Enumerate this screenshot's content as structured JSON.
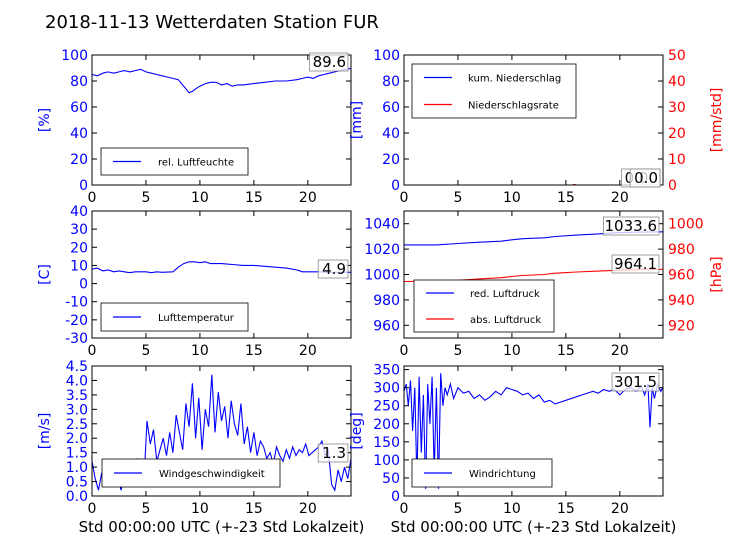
{
  "suptitle": "2018-11-13 Wetterdaten Station FUR\u0005",
  "colors": {
    "primary": "#0000ff",
    "secondary": "#ff0000",
    "frame": "#000000"
  },
  "chart_data": [
    {
      "id": "feuchte",
      "type": "line",
      "ylabel": "[%]",
      "xlim": [
        0,
        24
      ],
      "ylim": [
        0,
        100
      ],
      "xticks": [
        0,
        5,
        10,
        15,
        20
      ],
      "yticks": [
        0,
        20,
        40,
        60,
        80,
        100
      ],
      "grid": false,
      "legend_position": "lower-left",
      "annotation": "89.6",
      "series": [
        {
          "name": "rel. Luftfeuchte",
          "color": "#0000ff",
          "x": [
            0,
            0.5,
            1,
            1.5,
            2,
            2.5,
            3,
            3.5,
            4,
            4.5,
            5,
            5.5,
            6,
            6.5,
            7,
            7.5,
            8,
            8.5,
            8.8,
            9,
            9.3,
            9.6,
            10,
            10.5,
            11,
            11.5,
            12,
            12.5,
            13,
            13.5,
            14,
            15,
            16,
            17,
            18,
            19,
            19.5,
            20,
            20.5,
            21,
            21.5,
            22,
            22.5,
            23,
            23.5,
            24
          ],
          "y": [
            85,
            84,
            86,
            87,
            86,
            87,
            88,
            87,
            88,
            89,
            87,
            86,
            85,
            84,
            83,
            82,
            81,
            76,
            73,
            71,
            72,
            74,
            76,
            78,
            79,
            79,
            77,
            78,
            76,
            77,
            77,
            78,
            79,
            80,
            80,
            81,
            82,
            83,
            82,
            84,
            85,
            86,
            87,
            88,
            89,
            89.6
          ]
        }
      ]
    },
    {
      "id": "niederschlag",
      "type": "line",
      "ylabel": "[mm]",
      "ylabel_right": "[mm/std]",
      "xlim": [
        0,
        24
      ],
      "ylim": [
        0,
        100
      ],
      "ylim_right": [
        0,
        50
      ],
      "xticks": [
        0,
        5,
        10,
        15,
        20
      ],
      "yticks": [
        0,
        20,
        40,
        60,
        80,
        100
      ],
      "yticks_right": [
        0,
        10,
        20,
        30,
        40,
        50
      ],
      "grid": false,
      "legend_position": "upper-left",
      "annotations": [
        "0.00",
        "0.0"
      ],
      "series": [
        {
          "name": "kum. Niederschlag",
          "axis": "left",
          "color": "#0000ff",
          "x": [
            0,
            24
          ],
          "y": [
            0,
            0
          ]
        },
        {
          "name": "Niederschlagsrate",
          "axis": "right",
          "color": "#ff0000",
          "x": [
            0,
            15.6,
            15.8,
            16,
            24
          ],
          "y": [
            0,
            0,
            0.2,
            0,
            0
          ]
        }
      ]
    },
    {
      "id": "temperatur",
      "type": "line",
      "ylabel": "[C]",
      "xlim": [
        0,
        24
      ],
      "ylim": [
        -30,
        40
      ],
      "xticks": [
        0,
        5,
        10,
        15,
        20
      ],
      "yticks": [
        -30,
        -20,
        -10,
        0,
        10,
        20,
        30,
        40
      ],
      "grid": false,
      "legend_position": "lower-left",
      "annotation": "4.9",
      "series": [
        {
          "name": "Lufttemperatur",
          "color": "#0000ff",
          "x": [
            0,
            0.5,
            1,
            1.5,
            2,
            2.5,
            3,
            3.5,
            4,
            4.5,
            5,
            5.5,
            6,
            6.5,
            7,
            7.5,
            8,
            8.5,
            9,
            9.5,
            10,
            10.5,
            11,
            11.5,
            12,
            13,
            14,
            15,
            16,
            17,
            18,
            19,
            19.5,
            20,
            21,
            22,
            23,
            24
          ],
          "y": [
            8,
            8.5,
            7,
            7.5,
            6.5,
            7,
            6.5,
            6,
            6.5,
            6.5,
            6.5,
            6,
            6.5,
            6.2,
            6.3,
            6.5,
            9,
            11,
            12,
            12,
            11.5,
            12,
            11,
            11,
            11,
            10.5,
            10,
            10,
            9.5,
            9,
            8.5,
            7.5,
            6.5,
            6.5,
            6.5,
            6.2,
            6.2,
            6.2
          ]
        }
      ]
    },
    {
      "id": "luftdruck",
      "type": "line",
      "ylabel_right": "[hPa]",
      "xlim": [
        0,
        24
      ],
      "ylim": [
        950,
        1050
      ],
      "ylim_right": [
        910,
        1010
      ],
      "xticks": [
        0,
        5,
        10,
        15,
        20
      ],
      "yticks": [
        960,
        980,
        1000,
        1020,
        1040
      ],
      "yticks_right": [
        920,
        940,
        960,
        980,
        1000
      ],
      "grid": false,
      "legend_position": "lower-left",
      "annotations": [
        "1033.6",
        "964.1"
      ],
      "series": [
        {
          "name": "red. Luftdruck",
          "axis": "left",
          "color": "#0000ff",
          "x": [
            0,
            3,
            5,
            7,
            9,
            10,
            11,
            13,
            14,
            16,
            18,
            20,
            22,
            24
          ],
          "y": [
            1023.3,
            1023.3,
            1024.4,
            1025.4,
            1026.2,
            1027.3,
            1028.2,
            1028.9,
            1029.9,
            1031,
            1032,
            1033,
            1033.4,
            1033.6
          ]
        },
        {
          "name": "abs. Luftdruck",
          "axis": "right",
          "color": "#ff0000",
          "x": [
            0,
            3,
            5,
            7,
            9,
            10,
            11,
            13,
            14,
            16,
            18,
            20,
            22,
            24
          ],
          "y": [
            954.5,
            954.8,
            955.4,
            956.5,
            957.5,
            958.4,
            959.2,
            960,
            961,
            962,
            962.7,
            963.4,
            963.9,
            964.1
          ]
        }
      ]
    },
    {
      "id": "wind",
      "type": "line",
      "ylabel": "[m/s]",
      "xlim": [
        0,
        24
      ],
      "ylim": [
        0,
        4.5
      ],
      "xticks": [
        0,
        5,
        10,
        15,
        20
      ],
      "yticks": [
        0.0,
        0.5,
        1.0,
        1.5,
        2.0,
        2.5,
        3.0,
        3.5,
        4.0,
        4.5
      ],
      "grid": false,
      "legend_position": "lower-center",
      "xlabel": "Std 00:00:00 UTC (+-23 Std Lokalzeit)",
      "annotation": "1.3",
      "series": [
        {
          "name": "Windgeschwindigkeit",
          "color": "#0000ff",
          "x": [
            0,
            0.3,
            0.6,
            0.9,
            1.2,
            1.5,
            1.8,
            2.1,
            2.4,
            2.7,
            3,
            3.3,
            3.6,
            3.9,
            4.2,
            4.5,
            4.8,
            5.1,
            5.4,
            5.7,
            6,
            6.3,
            6.6,
            6.9,
            7.2,
            7.5,
            7.8,
            8.1,
            8.4,
            8.7,
            9,
            9.3,
            9.6,
            9.9,
            10.2,
            10.5,
            10.8,
            11.1,
            11.4,
            11.7,
            12,
            12.3,
            12.6,
            12.9,
            13.2,
            13.5,
            13.8,
            14.1,
            14.4,
            14.7,
            15,
            15.3,
            15.6,
            15.9,
            16.2,
            16.5,
            16.8,
            17.1,
            17.4,
            17.7,
            18,
            18.3,
            18.6,
            18.9,
            19.2,
            19.5,
            19.8,
            20.1,
            20.4,
            20.7,
            21,
            21.3,
            21.6,
            21.9,
            22.2,
            22.5,
            22.8,
            23.1,
            23.4,
            23.7,
            24
          ],
          "y": [
            1.2,
            0.6,
            0.2,
            0.8,
            0.3,
            1.0,
            0.4,
            1.2,
            0.6,
            0.2,
            0.9,
            0.4,
            1.1,
            0.5,
            1.3,
            0.8,
            0.4,
            2.6,
            1.8,
            2.3,
            1.2,
            1.6,
            2.0,
            1.4,
            2.2,
            1.5,
            2.8,
            2.2,
            1.6,
            3.2,
            2.4,
            3.9,
            2.0,
            3.4,
            1.6,
            3.0,
            2.4,
            4.2,
            2.2,
            3.6,
            2.6,
            3.1,
            2.0,
            3.3,
            2.5,
            2.1,
            3.2,
            1.8,
            2.4,
            1.5,
            2.2,
            1.4,
            1.9,
            1.7,
            1.3,
            1.5,
            1.1,
            1.7,
            1.4,
            1.2,
            1.6,
            1.3,
            1.7,
            1.4,
            1.6,
            1.5,
            1.8,
            1.4,
            1.5,
            1.6,
            1.7,
            1.9,
            1.4,
            1.6,
            0.4,
            0.2,
            0.9,
            0.5,
            1.0,
            0.6,
            1.3
          ]
        }
      ]
    },
    {
      "id": "windrichtung",
      "type": "line",
      "ylabel": "[deg]",
      "xlim": [
        0,
        24
      ],
      "ylim": [
        0,
        360
      ],
      "xticks": [
        0,
        5,
        10,
        15,
        20
      ],
      "yticks": [
        0,
        50,
        100,
        150,
        200,
        250,
        300,
        350
      ],
      "grid": false,
      "legend_position": "lower-left",
      "xlabel": "Std 00:00:00 UTC (+-23 Std Lokalzeit)",
      "annotation": "301.5",
      "series": [
        {
          "name": "Windrichtung",
          "color": "#0000ff",
          "x": [
            0,
            0.2,
            0.4,
            0.6,
            0.8,
            1.0,
            1.2,
            1.4,
            1.6,
            1.8,
            2.0,
            2.2,
            2.4,
            2.6,
            2.8,
            3.0,
            3.2,
            3.4,
            3.6,
            3.8,
            4.0,
            4.3,
            4.6,
            5,
            5.5,
            6,
            6.5,
            7,
            7.5,
            8,
            8.5,
            9,
            9.5,
            10,
            10.5,
            11,
            11.5,
            12,
            12.5,
            13,
            13.5,
            14,
            14.5,
            15,
            15.5,
            16,
            16.5,
            17,
            17.5,
            18,
            18.5,
            19,
            19.5,
            20,
            20.5,
            21,
            21.5,
            22,
            22.3,
            22.6,
            22.8,
            23,
            23.2,
            23.5,
            23.8,
            24
          ],
          "y": [
            290,
            310,
            250,
            320,
            180,
            300,
            40,
            330,
            120,
            280,
            20,
            310,
            200,
            330,
            60,
            300,
            20,
            340,
            250,
            300,
            280,
            310,
            270,
            300,
            285,
            290,
            270,
            280,
            265,
            275,
            290,
            280,
            300,
            295,
            290,
            280,
            285,
            270,
            280,
            260,
            265,
            255,
            260,
            265,
            270,
            275,
            280,
            285,
            290,
            285,
            295,
            290,
            295,
            280,
            295,
            300,
            290,
            305,
            280,
            310,
            190,
            300,
            270,
            310,
            290,
            301.5
          ]
        }
      ]
    }
  ]
}
